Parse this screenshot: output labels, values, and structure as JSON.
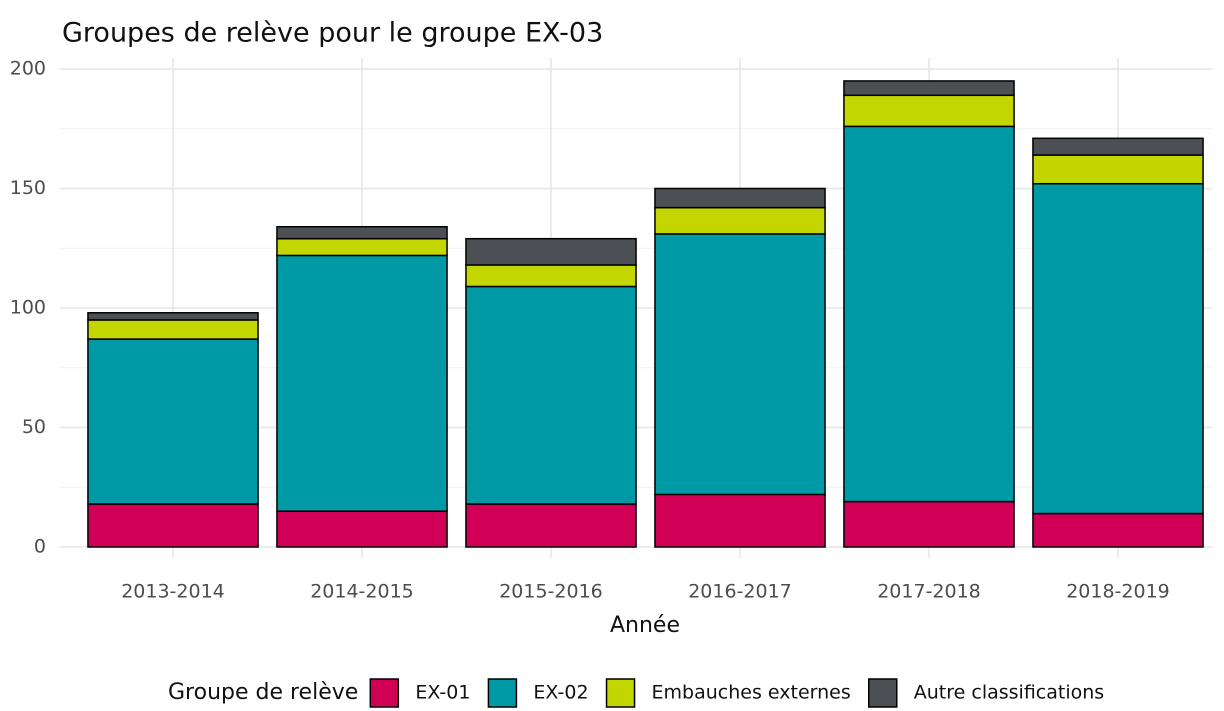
{
  "chart_data": {
    "type": "bar",
    "stacked": true,
    "title": "Groupes de relève pour le groupe EX-03",
    "x_label": "Année",
    "legend_title": "Groupe de relève",
    "legend_position": "bottom",
    "categories": [
      "2013-2014",
      "2014-2015",
      "2015-2016",
      "2016-2017",
      "2017-2018",
      "2018-2019"
    ],
    "series": [
      {
        "name": "EX-01",
        "color": "#d10056",
        "values": [
          18,
          15,
          18,
          22,
          19,
          14
        ]
      },
      {
        "name": "EX-02",
        "color": "#009aa6",
        "values": [
          69,
          107,
          91,
          109,
          157,
          138
        ]
      },
      {
        "name": "Embauches externes",
        "color": "#c3d600",
        "values": [
          8,
          7,
          9,
          11,
          13,
          12
        ]
      },
      {
        "name": "Autre classifications",
        "color": "#4c5055",
        "values": [
          3,
          5,
          11,
          8,
          6,
          7
        ]
      }
    ],
    "ylim": [
      0,
      200
    ],
    "yticks": [
      0,
      50,
      100,
      150,
      200
    ],
    "minor_yticks": [
      25,
      75,
      125,
      175
    ],
    "grid": true
  }
}
